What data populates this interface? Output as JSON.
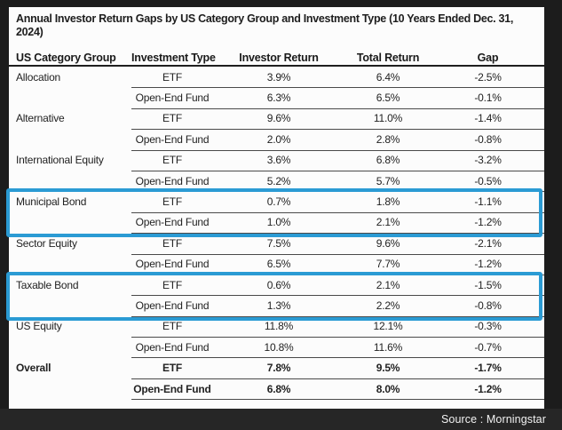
{
  "source_label": "Source : Morningstar",
  "colors": {
    "highlight_border": "#2b9bd4",
    "frame_background": "#1c1c1c",
    "panel_background": "#fcfcfc",
    "source_bar_background": "#262626"
  },
  "chart_data": {
    "type": "table",
    "title": "Annual Investor Return Gaps by US Category Group and Investment Type (10 Years Ended Dec. 31, 2024)",
    "columns": [
      "US Category Group",
      "Investment Type",
      "Investor Return",
      "Total Return",
      "Gap"
    ],
    "rows": [
      {
        "category": "Allocation",
        "investment_type": "ETF",
        "investor_return": "3.9%",
        "total_return": "6.4%",
        "gap": "-2.5%",
        "bold": false,
        "highlight": false
      },
      {
        "category": "",
        "investment_type": "Open-End Fund",
        "investor_return": "6.3%",
        "total_return": "6.5%",
        "gap": "-0.1%",
        "bold": false,
        "highlight": false
      },
      {
        "category": "Alternative",
        "investment_type": "ETF",
        "investor_return": "9.6%",
        "total_return": "11.0%",
        "gap": "-1.4%",
        "bold": false,
        "highlight": false
      },
      {
        "category": "",
        "investment_type": "Open-End Fund",
        "investor_return": "2.0%",
        "total_return": "2.8%",
        "gap": "-0.8%",
        "bold": false,
        "highlight": false
      },
      {
        "category": "International Equity",
        "investment_type": "ETF",
        "investor_return": "3.6%",
        "total_return": "6.8%",
        "gap": "-3.2%",
        "bold": false,
        "highlight": false
      },
      {
        "category": "",
        "investment_type": "Open-End Fund",
        "investor_return": "5.2%",
        "total_return": "5.7%",
        "gap": "-0.5%",
        "bold": false,
        "highlight": false
      },
      {
        "category": "Municipal Bond",
        "investment_type": "ETF",
        "investor_return": "0.7%",
        "total_return": "1.8%",
        "gap": "-1.1%",
        "bold": false,
        "highlight": true
      },
      {
        "category": "",
        "investment_type": "Open-End Fund",
        "investor_return": "1.0%",
        "total_return": "2.1%",
        "gap": "-1.2%",
        "bold": false,
        "highlight": true
      },
      {
        "category": "Sector Equity",
        "investment_type": "ETF",
        "investor_return": "7.5%",
        "total_return": "9.6%",
        "gap": "-2.1%",
        "bold": false,
        "highlight": false
      },
      {
        "category": "",
        "investment_type": "Open-End Fund",
        "investor_return": "6.5%",
        "total_return": "7.7%",
        "gap": "-1.2%",
        "bold": false,
        "highlight": false
      },
      {
        "category": "Taxable Bond",
        "investment_type": "ETF",
        "investor_return": "0.6%",
        "total_return": "2.1%",
        "gap": "-1.5%",
        "bold": false,
        "highlight": true
      },
      {
        "category": "",
        "investment_type": "Open-End Fund",
        "investor_return": "1.3%",
        "total_return": "2.2%",
        "gap": "-0.8%",
        "bold": false,
        "highlight": true
      },
      {
        "category": "US Equity",
        "investment_type": "ETF",
        "investor_return": "11.8%",
        "total_return": "12.1%",
        "gap": "-0.3%",
        "bold": false,
        "highlight": false
      },
      {
        "category": "",
        "investment_type": "Open-End Fund",
        "investor_return": "10.8%",
        "total_return": "11.6%",
        "gap": "-0.7%",
        "bold": false,
        "highlight": false
      },
      {
        "category": "Overall",
        "investment_type": "ETF",
        "investor_return": "7.8%",
        "total_return": "9.5%",
        "gap": "-1.7%",
        "bold": true,
        "highlight": false
      },
      {
        "category": "",
        "investment_type": "Open-End Fund",
        "investor_return": "6.8%",
        "total_return": "8.0%",
        "gap": "-1.2%",
        "bold": true,
        "highlight": false
      }
    ],
    "highlighted_groups": [
      "Municipal Bond",
      "Taxable Bond"
    ],
    "legend_position": "none",
    "grid": "horizontal-rules"
  }
}
